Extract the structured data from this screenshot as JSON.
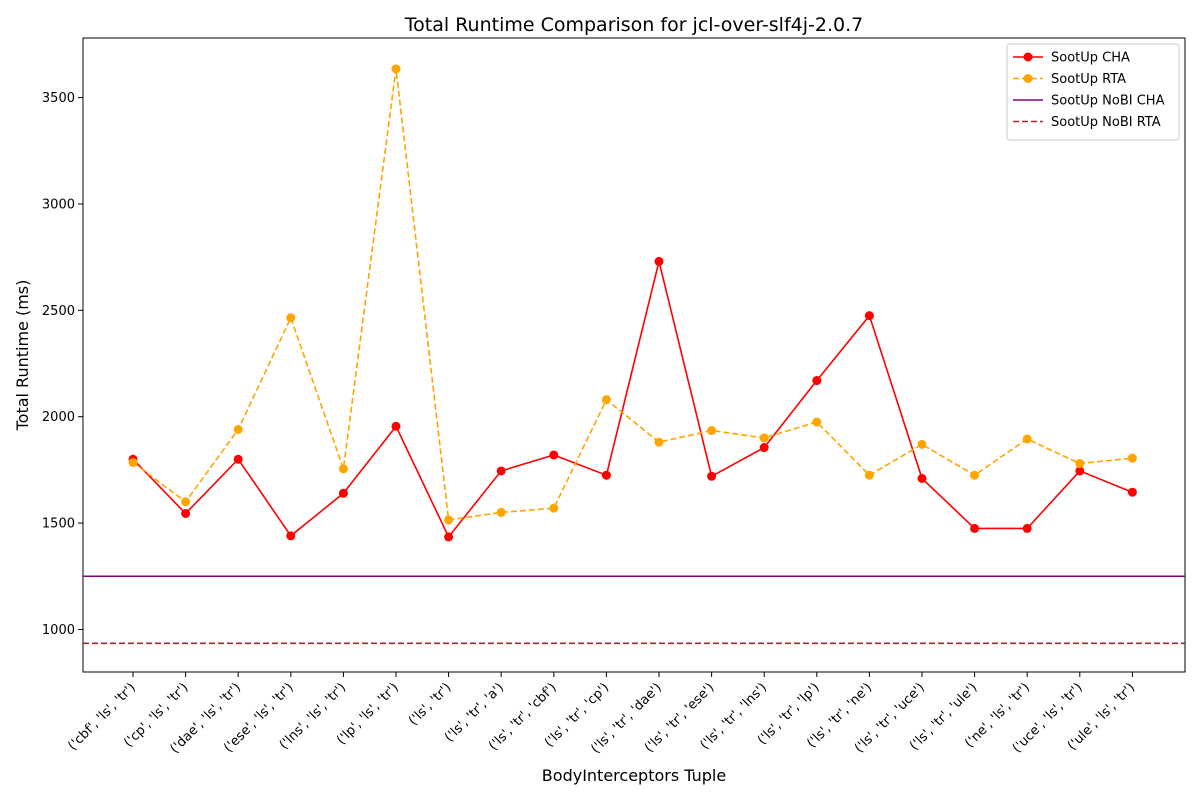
{
  "chart_data": {
    "type": "line",
    "title": "Total Runtime Comparison for jcl-over-slf4j-2.0.7",
    "xlabel": "BodyInterceptors Tuple",
    "ylabel": "Total Runtime (ms)",
    "ylim": [
      800,
      3780
    ],
    "yticks": [
      1000,
      1500,
      2000,
      2500,
      3000,
      3500
    ],
    "grid": false,
    "legend_position": "top-right",
    "categories": [
      "('cbf', 'ls', 'tr')",
      "('cp', 'ls', 'tr')",
      "('dae', 'ls', 'tr')",
      "('ese', 'ls', 'tr')",
      "('lns', 'ls', 'tr')",
      "('lp', 'ls', 'tr')",
      "('ls', 'tr')",
      "('ls', 'tr', 'a')",
      "('ls', 'tr', 'cbf')",
      "('ls', 'tr', 'cp')",
      "('ls', 'tr', 'dae')",
      "('ls', 'tr', 'ese')",
      "('ls', 'tr', 'lns')",
      "('ls', 'tr', 'lp')",
      "('ls', 'tr', 'ne')",
      "('ls', 'tr', 'uce')",
      "('ls', 'tr', 'ule')",
      "('ne', 'ls', 'tr')",
      "('uce', 'ls', 'tr')",
      "('ule', 'ls', 'tr')"
    ],
    "series": [
      {
        "name": "SootUp CHA",
        "color": "#ff0000",
        "style": "solid-marker",
        "values": [
          1800,
          1545,
          1800,
          1440,
          1640,
          1955,
          1435,
          1745,
          1820,
          1725,
          2730,
          1720,
          1855,
          2170,
          2475,
          1710,
          1475,
          1475,
          1745,
          1645
        ]
      },
      {
        "name": "SootUp RTA",
        "color": "#ffa500",
        "style": "dashed-marker",
        "values": [
          1785,
          1600,
          1940,
          2465,
          1755,
          3635,
          1515,
          1550,
          1570,
          2080,
          1880,
          1935,
          1900,
          1975,
          1725,
          1870,
          1725,
          1895,
          1780,
          1805
        ]
      },
      {
        "name": "SootUp NoBI CHA",
        "color": "#800080",
        "style": "solid-hline",
        "value": 1250
      },
      {
        "name": "SootUp NoBI RTA",
        "color": "#a52a2a",
        "style": "dashed-hline",
        "value": 935
      }
    ]
  }
}
